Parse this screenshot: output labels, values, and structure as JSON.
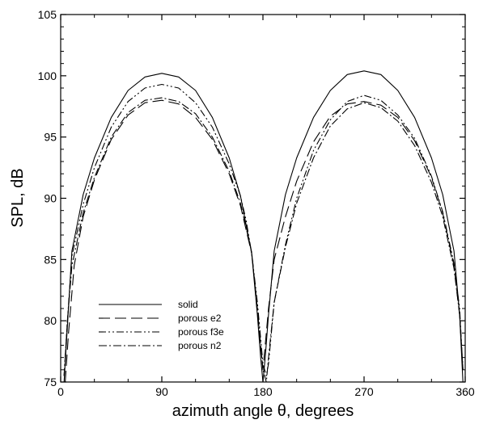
{
  "chart_data": {
    "type": "line",
    "title": "",
    "xlabel": "azimuth angle θ, degrees",
    "ylabel": "SPL, dB",
    "xlim": [
      0,
      360
    ],
    "ylim": [
      75,
      105
    ],
    "xticks": [
      0,
      90,
      180,
      270,
      360
    ],
    "yticks": [
      75,
      80,
      85,
      90,
      95,
      100,
      105
    ],
    "grid": false,
    "legend_position": "bottom-left",
    "series": [
      {
        "name": "solid",
        "dash": "solid",
        "x": [
          3,
          5,
          10,
          20,
          30,
          45,
          60,
          75,
          90,
          105,
          120,
          135,
          150,
          160,
          170,
          175,
          178,
          180,
          182,
          185,
          190,
          200,
          210,
          225,
          240,
          255,
          270,
          285,
          300,
          315,
          330,
          340,
          350,
          355,
          358
        ],
        "y": [
          75,
          78,
          85.7,
          90.3,
          93.3,
          96.6,
          98.8,
          99.9,
          100.2,
          99.9,
          98.8,
          96.6,
          93.3,
          90.2,
          85.5,
          80.5,
          77,
          75,
          77,
          80.5,
          85.7,
          90.3,
          93.3,
          96.6,
          98.8,
          100.1,
          100.4,
          100.1,
          98.8,
          96.6,
          93.3,
          90.3,
          85.7,
          80.5,
          75
        ]
      },
      {
        "name": "porous e2",
        "dash": "long-dash",
        "x": [
          4,
          7,
          12,
          20,
          30,
          45,
          60,
          75,
          90,
          105,
          120,
          135,
          150,
          160,
          170,
          175,
          178,
          180,
          182,
          185,
          190,
          200,
          210,
          225,
          240,
          255,
          270,
          285,
          300,
          315,
          330,
          340,
          350,
          355,
          358
        ],
        "y": [
          75,
          79,
          84.5,
          88.5,
          91.5,
          94.8,
          96.8,
          97.8,
          98,
          97.7,
          96.6,
          94.8,
          92,
          89.4,
          85.5,
          81,
          78,
          76,
          78,
          81,
          85,
          88.5,
          91.4,
          94.6,
          96.7,
          97.7,
          97.9,
          97.6,
          96.6,
          94.7,
          91.7,
          88.8,
          84.5,
          80.5,
          76
        ]
      },
      {
        "name": "porous f3e",
        "dash": "dash-dot-dot",
        "x": [
          3,
          6,
          10,
          20,
          30,
          45,
          60,
          75,
          90,
          105,
          120,
          135,
          150,
          160,
          165,
          170,
          175,
          180,
          183,
          185,
          190,
          200,
          210,
          225,
          240,
          255,
          270,
          285,
          300,
          315,
          330,
          340,
          350,
          355,
          358
        ],
        "y": [
          75.5,
          80,
          85.3,
          89.5,
          92.5,
          95.8,
          97.9,
          99,
          99.3,
          99,
          97.8,
          95.8,
          92.8,
          90.2,
          88.2,
          85.5,
          81.5,
          76.5,
          75.5,
          76.5,
          81.5,
          86.2,
          90,
          93.9,
          96.4,
          97.9,
          98.4,
          98,
          96.8,
          94.9,
          91.8,
          88.9,
          84.7,
          81,
          76
        ]
      },
      {
        "name": "porous n2",
        "dash": "dash-dot",
        "x": [
          3,
          6,
          10,
          20,
          30,
          45,
          60,
          75,
          90,
          105,
          120,
          135,
          150,
          160,
          170,
          175,
          180,
          183,
          185,
          190,
          200,
          210,
          225,
          240,
          255,
          270,
          285,
          300,
          315,
          330,
          340,
          350,
          355,
          358
        ],
        "y": [
          75.5,
          80,
          84.5,
          88.8,
          91.7,
          95,
          97,
          98,
          98.2,
          97.9,
          96.9,
          95,
          92.2,
          89.6,
          85.6,
          81,
          76,
          75,
          77,
          81.5,
          86,
          89.6,
          93.3,
          95.9,
          97.3,
          97.8,
          97.4,
          96.3,
          94.3,
          91.3,
          88.5,
          84.3,
          80.5,
          76
        ]
      }
    ]
  }
}
